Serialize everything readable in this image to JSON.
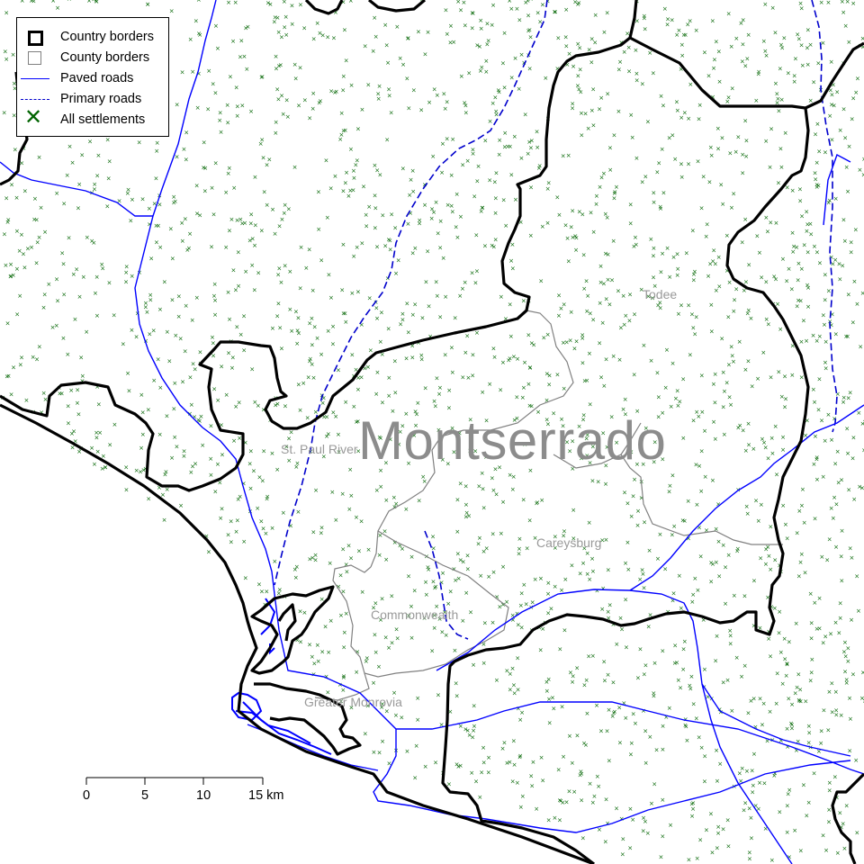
{
  "map": {
    "region_label": "Montserrado",
    "county_labels": [
      {
        "id": "st-paul-river",
        "text": "St. Paul River"
      },
      {
        "id": "todee",
        "text": "Todee"
      },
      {
        "id": "careysburg",
        "text": "Careysburg"
      },
      {
        "id": "commonwealth",
        "text": "Commonwealth"
      },
      {
        "id": "greater-monrovia",
        "text": "Greater Monrovia"
      }
    ],
    "colors": {
      "country_border": "#000000",
      "county_border": "#808080",
      "paved_road": "#0000ff",
      "primary_road": "#0000cc",
      "settlement": "#006400",
      "label": "#999999"
    }
  },
  "legend": {
    "items": [
      {
        "symbol": "square-thick",
        "label": "Country borders"
      },
      {
        "symbol": "square-grey",
        "label": "County borders"
      },
      {
        "symbol": "line-solid-blue",
        "label": "Paved roads"
      },
      {
        "symbol": "line-dashed-blue",
        "label": "Primary roads"
      },
      {
        "symbol": "x-green",
        "label": "All settlements"
      }
    ]
  },
  "scalebar": {
    "ticks": [
      "0",
      "5",
      "10",
      "15 km"
    ]
  }
}
